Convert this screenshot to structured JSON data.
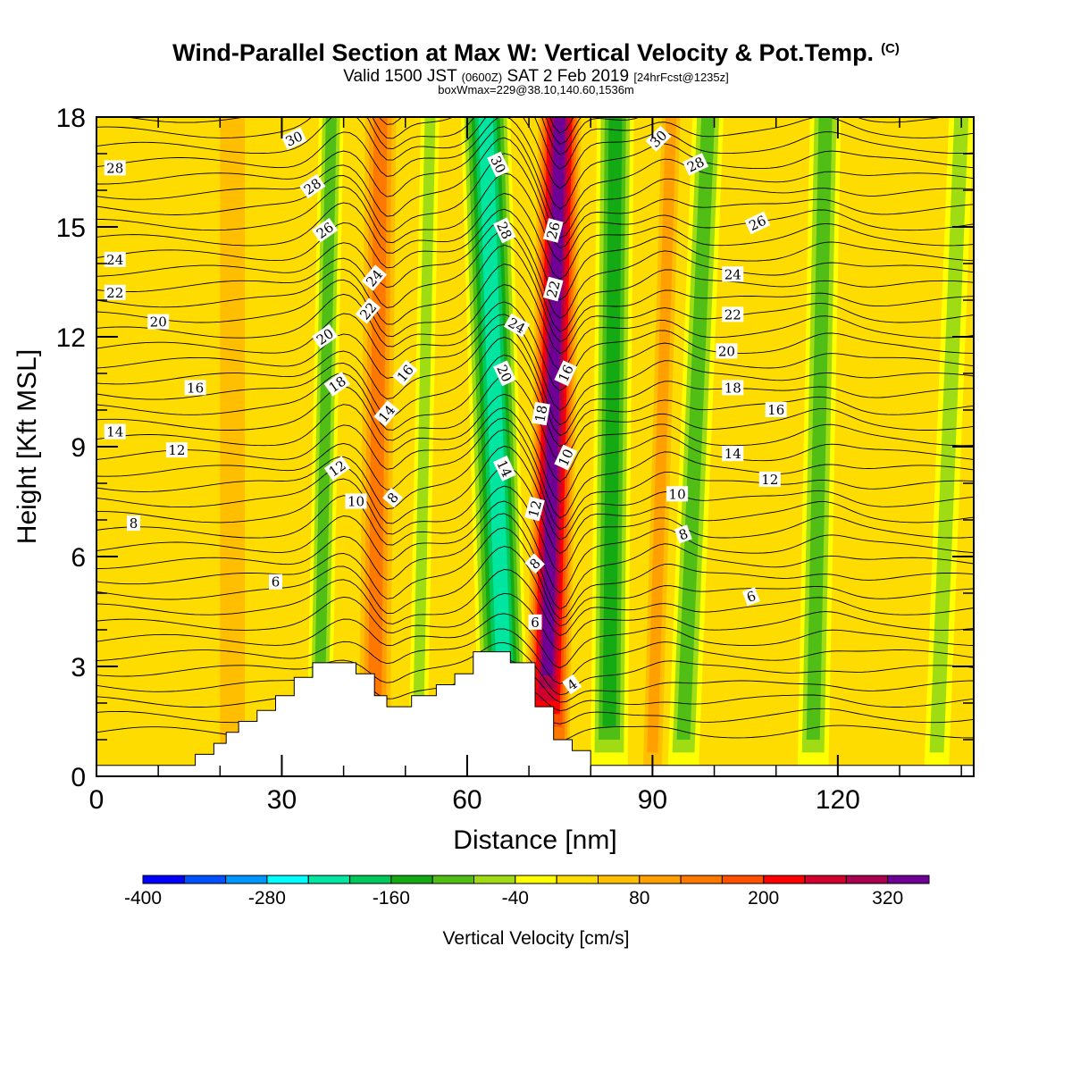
{
  "header": {
    "title": "Wind-Parallel Section at Max W: Vertical Velocity & Pot.Temp.",
    "title_mark": "(C)",
    "subtitle_a": "Valid 1500 JST",
    "subtitle_zulu": "(0600Z)",
    "subtitle_b": "SAT 2 Feb 2019",
    "subtitle_fcst": "[24hrFcst@1235z]",
    "subtitle2": "boxWmax=229@38.10,140.60,1536m"
  },
  "chart_data": {
    "type": "heatmap",
    "xlabel": "Distance [nm]",
    "ylabel": "Height [Kft MSL]",
    "xlim": [
      0,
      142
    ],
    "ylim": [
      0,
      18
    ],
    "x_ticks": [
      0,
      30,
      60,
      90,
      120
    ],
    "y_ticks": [
      0,
      3,
      6,
      9,
      12,
      15,
      18
    ],
    "colorbar": {
      "label": "Vertical Velocity [cm/s]",
      "min": -400,
      "max": 360,
      "step": 40,
      "tick_values": [
        -400,
        -280,
        -160,
        -40,
        80,
        200,
        320
      ],
      "colors": [
        "#0000ff",
        "#0050ff",
        "#0096ff",
        "#00ffff",
        "#00e6a0",
        "#00c85a",
        "#14aa14",
        "#50be14",
        "#a0dc14",
        "#ffff00",
        "#ffdc00",
        "#ffbe00",
        "#ffa000",
        "#ff7800",
        "#ff5000",
        "#ff0000",
        "#d2002d",
        "#aa0050",
        "#6e0096"
      ]
    },
    "velocity_bands": [
      {
        "x_bottom": 36,
        "x_top": 38,
        "width": 4,
        "value": -130
      },
      {
        "x_bottom": 45,
        "x_top": 46,
        "width": 5,
        "value": 100
      },
      {
        "x_bottom": 52,
        "x_top": 54,
        "width": 3,
        "value": -90
      },
      {
        "x_bottom": 66,
        "x_top": 63,
        "width": 8,
        "value": -230
      },
      {
        "x_bottom": 73,
        "x_top": 75,
        "width": 7,
        "value": 300
      },
      {
        "x_bottom": 83,
        "x_top": 84,
        "width": 6,
        "value": -150
      },
      {
        "x_bottom": 95,
        "x_top": 99,
        "width": 5,
        "value": -110
      },
      {
        "x_bottom": 90,
        "x_top": 93,
        "width": 3,
        "value": 60
      },
      {
        "x_bottom": 116,
        "x_top": 118,
        "width": 5,
        "value": -100
      },
      {
        "x_bottom": 136,
        "x_top": 140,
        "width": 4,
        "value": -80
      },
      {
        "x_bottom": 22,
        "x_top": 22,
        "width": 4,
        "value": 40
      }
    ],
    "terrain_kft": [
      [
        0,
        0.3
      ],
      [
        16,
        0.3
      ],
      [
        16,
        0.6
      ],
      [
        19,
        0.6
      ],
      [
        19,
        0.9
      ],
      [
        21,
        0.9
      ],
      [
        21,
        1.2
      ],
      [
        23,
        1.2
      ],
      [
        23,
        1.5
      ],
      [
        26,
        1.5
      ],
      [
        26,
        1.8
      ],
      [
        29,
        1.8
      ],
      [
        29,
        2.2
      ],
      [
        32,
        2.2
      ],
      [
        32,
        2.7
      ],
      [
        35,
        2.7
      ],
      [
        35,
        3.1
      ],
      [
        42,
        3.1
      ],
      [
        42,
        2.8
      ],
      [
        45,
        2.8
      ],
      [
        45,
        2.2
      ],
      [
        47,
        2.2
      ],
      [
        47,
        1.9
      ],
      [
        51,
        1.9
      ],
      [
        51,
        2.2
      ],
      [
        55,
        2.2
      ],
      [
        55,
        2.5
      ],
      [
        58,
        2.5
      ],
      [
        58,
        2.8
      ],
      [
        61,
        2.8
      ],
      [
        61,
        3.4
      ],
      [
        67,
        3.4
      ],
      [
        67,
        3.1
      ],
      [
        71,
        3.1
      ],
      [
        71,
        1.9
      ],
      [
        74,
        1.9
      ],
      [
        74,
        1.0
      ],
      [
        77,
        1.0
      ],
      [
        77,
        0.7
      ],
      [
        80,
        0.7
      ],
      [
        80,
        0.3
      ],
      [
        142,
        0.3
      ]
    ],
    "isentropes": {
      "label_positions": [
        {
          "x": 32,
          "y": 17.4,
          "label": "30",
          "angle": -25
        },
        {
          "x": 3,
          "y": 16.6,
          "label": "28",
          "angle": 0
        },
        {
          "x": 35,
          "y": 16.1,
          "label": "28",
          "angle": -35
        },
        {
          "x": 37,
          "y": 14.9,
          "label": "26",
          "angle": -35
        },
        {
          "x": 3,
          "y": 14.1,
          "label": "24",
          "angle": 0
        },
        {
          "x": 45,
          "y": 13.6,
          "label": "24",
          "angle": -50
        },
        {
          "x": 3,
          "y": 13.2,
          "label": "22",
          "angle": 0
        },
        {
          "x": 44,
          "y": 12.7,
          "label": "22",
          "angle": -50
        },
        {
          "x": 10,
          "y": 12.4,
          "label": "20",
          "angle": 0
        },
        {
          "x": 37,
          "y": 12.0,
          "label": "20",
          "angle": -35
        },
        {
          "x": 16,
          "y": 10.6,
          "label": "16",
          "angle": 0
        },
        {
          "x": 39,
          "y": 10.7,
          "label": "18",
          "angle": -35
        },
        {
          "x": 50,
          "y": 11.0,
          "label": "16",
          "angle": -50
        },
        {
          "x": 3,
          "y": 9.4,
          "label": "14",
          "angle": 0
        },
        {
          "x": 47,
          "y": 9.9,
          "label": "14",
          "angle": -50
        },
        {
          "x": 13,
          "y": 8.9,
          "label": "12",
          "angle": 0
        },
        {
          "x": 39,
          "y": 8.4,
          "label": "12",
          "angle": -35
        },
        {
          "x": 42,
          "y": 7.5,
          "label": "10",
          "angle": 0
        },
        {
          "x": 48,
          "y": 7.6,
          "label": "8",
          "angle": -50
        },
        {
          "x": 6,
          "y": 6.9,
          "label": "8",
          "angle": 0
        },
        {
          "x": 29,
          "y": 5.3,
          "label": "6",
          "angle": 0
        },
        {
          "x": 65,
          "y": 16.7,
          "label": "30",
          "angle": 65
        },
        {
          "x": 66,
          "y": 14.9,
          "label": "28",
          "angle": 65
        },
        {
          "x": 68,
          "y": 12.3,
          "label": "24",
          "angle": 30
        },
        {
          "x": 66,
          "y": 11.0,
          "label": "20",
          "angle": 65
        },
        {
          "x": 66,
          "y": 8.4,
          "label": "14",
          "angle": 65
        },
        {
          "x": 71,
          "y": 7.3,
          "label": "12",
          "angle": -75
        },
        {
          "x": 71,
          "y": 5.8,
          "label": "8",
          "angle": -45
        },
        {
          "x": 71,
          "y": 4.2,
          "label": "6",
          "angle": 0
        },
        {
          "x": 74,
          "y": 14.9,
          "label": "26",
          "angle": -75
        },
        {
          "x": 74,
          "y": 13.3,
          "label": "22",
          "angle": -75
        },
        {
          "x": 72,
          "y": 9.9,
          "label": "18",
          "angle": -80
        },
        {
          "x": 76,
          "y": 11.0,
          "label": "16",
          "angle": -65
        },
        {
          "x": 76,
          "y": 8.7,
          "label": "10",
          "angle": -65
        },
        {
          "x": 77,
          "y": 2.5,
          "label": "4",
          "angle": -35
        },
        {
          "x": 91,
          "y": 17.4,
          "label": "30",
          "angle": -45
        },
        {
          "x": 97,
          "y": 16.7,
          "label": "28",
          "angle": -25
        },
        {
          "x": 107,
          "y": 15.1,
          "label": "26",
          "angle": -25
        },
        {
          "x": 103,
          "y": 13.7,
          "label": "24",
          "angle": 0
        },
        {
          "x": 103,
          "y": 12.6,
          "label": "22",
          "angle": 0
        },
        {
          "x": 102,
          "y": 11.6,
          "label": "20",
          "angle": 0
        },
        {
          "x": 103,
          "y": 10.6,
          "label": "18",
          "angle": 0
        },
        {
          "x": 110,
          "y": 10.0,
          "label": "16",
          "angle": 0
        },
        {
          "x": 103,
          "y": 8.8,
          "label": "14",
          "angle": 0
        },
        {
          "x": 109,
          "y": 8.1,
          "label": "12",
          "angle": 0
        },
        {
          "x": 94,
          "y": 7.7,
          "label": "10",
          "angle": 0
        },
        {
          "x": 95,
          "y": 6.6,
          "label": "8",
          "angle": -20
        },
        {
          "x": 106,
          "y": 4.9,
          "label": "6",
          "angle": -20
        }
      ]
    }
  }
}
